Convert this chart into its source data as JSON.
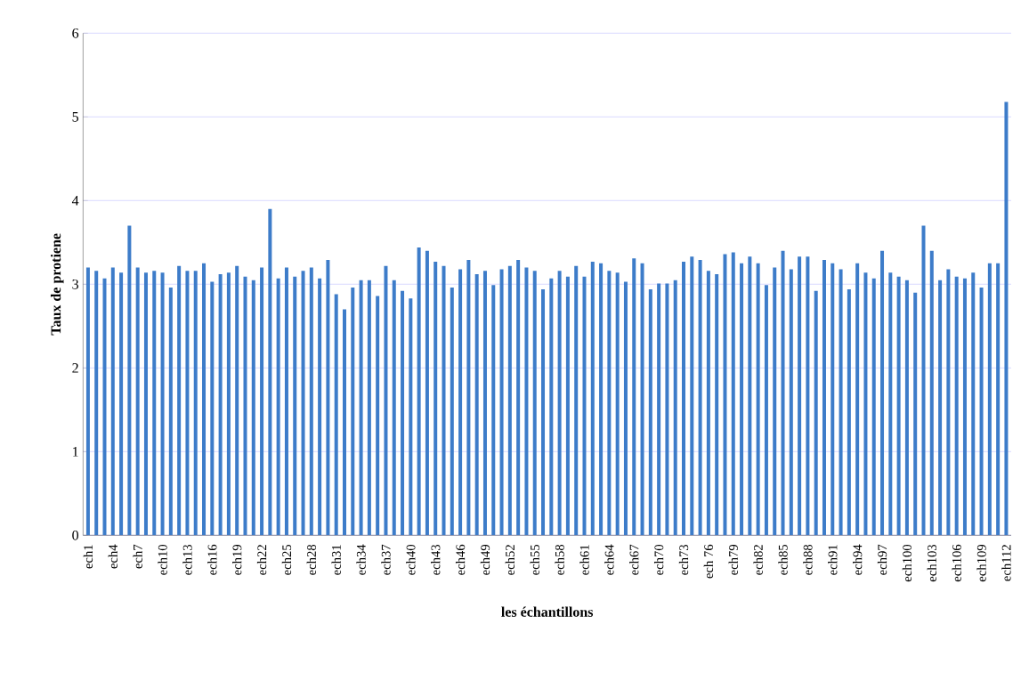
{
  "chart_data": {
    "type": "bar",
    "xlabel": "les échantillons",
    "ylabel": "Taux de protiene",
    "categories": [
      "ech1",
      null,
      null,
      "ech4",
      null,
      null,
      "ech7",
      null,
      null,
      "ech10",
      null,
      null,
      "ech13",
      null,
      null,
      "ech16",
      null,
      null,
      "ech19",
      null,
      null,
      "ech22",
      null,
      null,
      "ech25",
      null,
      null,
      "ech28",
      null,
      null,
      "ech31",
      null,
      null,
      "ech34",
      null,
      null,
      "ech37",
      null,
      null,
      "ech40",
      null,
      null,
      "ech43",
      null,
      null,
      "ech46",
      null,
      null,
      "ech49",
      null,
      null,
      "ech52",
      null,
      null,
      "ech55",
      null,
      null,
      "ech58",
      null,
      null,
      "ech61",
      null,
      null,
      "ech64",
      null,
      null,
      "ech67",
      null,
      null,
      "ech70",
      null,
      null,
      "ech73",
      null,
      null,
      "ech 76",
      null,
      null,
      "ech79",
      null,
      null,
      "ech82",
      null,
      null,
      "ech85",
      null,
      null,
      "ech88",
      null,
      null,
      "ech91",
      null,
      null,
      "ech94",
      null,
      null,
      "ech97",
      null,
      null,
      "ech100",
      null,
      null,
      "ech103",
      null,
      null,
      "ech106",
      null,
      null,
      "ech109",
      null,
      null,
      "ech112"
    ],
    "values": [
      3.2,
      3.16,
      3.07,
      3.2,
      3.14,
      3.7,
      3.2,
      3.14,
      3.16,
      3.14,
      2.96,
      3.22,
      3.16,
      3.16,
      3.25,
      3.03,
      3.12,
      3.14,
      3.22,
      3.09,
      3.05,
      3.2,
      3.9,
      3.07,
      3.2,
      3.09,
      3.16,
      3.2,
      3.07,
      3.29,
      2.88,
      2.7,
      2.96,
      3.05,
      3.05,
      2.86,
      3.22,
      3.05,
      2.92,
      2.83,
      3.44,
      3.4,
      3.27,
      3.22,
      2.96,
      3.18,
      3.29,
      3.12,
      3.16,
      2.99,
      3.18,
      3.22,
      3.29,
      3.2,
      3.16,
      2.94,
      3.07,
      3.16,
      3.09,
      3.22,
      3.09,
      3.27,
      3.25,
      3.16,
      3.14,
      3.03,
      3.31,
      3.25,
      2.94,
      3.01,
      3.01,
      3.05,
      3.27,
      3.33,
      3.29,
      3.16,
      3.12,
      3.36,
      3.38,
      3.25,
      3.33,
      3.25,
      2.99,
      3.2,
      3.4,
      3.18,
      3.33,
      3.33,
      2.92,
      3.29,
      3.25,
      3.18,
      2.94,
      3.25,
      3.14,
      3.07,
      3.4,
      3.14,
      3.09,
      3.05,
      2.9,
      3.7,
      3.4,
      3.05,
      3.18,
      3.09,
      3.07,
      3.14,
      2.96,
      3.25,
      3.25,
      5.18
    ],
    "color": "#3d7cc9",
    "ylim": [
      0,
      6
    ],
    "yticks": [
      0,
      1,
      2,
      3,
      4,
      5,
      6
    ],
    "grid": "y"
  }
}
